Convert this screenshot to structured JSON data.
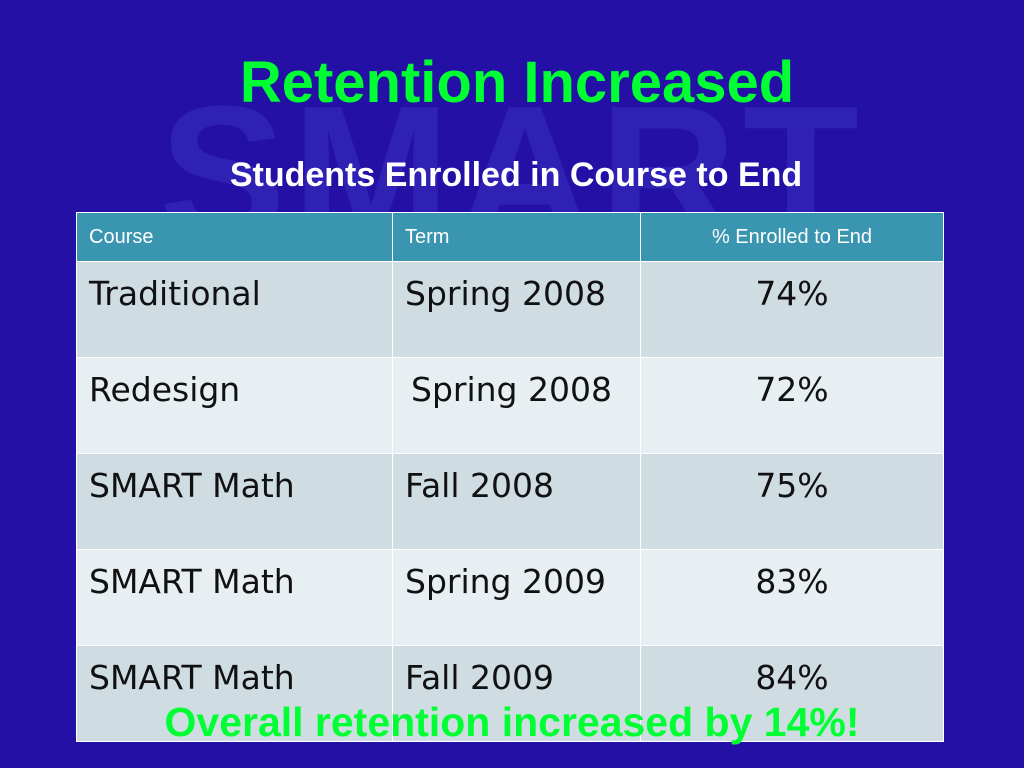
{
  "slide": {
    "watermark": "SMART",
    "title": "Retention Increased",
    "subtitle": "Students Enrolled in Course to End",
    "footer": "Overall retention increased by 14%!"
  },
  "table": {
    "headers": [
      "Course",
      "Term",
      "% Enrolled to End"
    ],
    "rows": [
      [
        "Traditional",
        "Spring 2008",
        "74%"
      ],
      [
        "Redesign",
        "Spring 2008",
        "72%"
      ],
      [
        "SMART Math",
        "Fall 2008",
        "75%"
      ],
      [
        "SMART Math",
        "Spring 2009",
        "83%"
      ],
      [
        "SMART Math",
        "Fall 2009",
        "84%"
      ]
    ]
  },
  "colors": {
    "background": "#2410a4",
    "title": "#00ff33",
    "header": "#3a95b0",
    "row_odd": "#cfdde3",
    "row_even": "#e8eff2"
  }
}
